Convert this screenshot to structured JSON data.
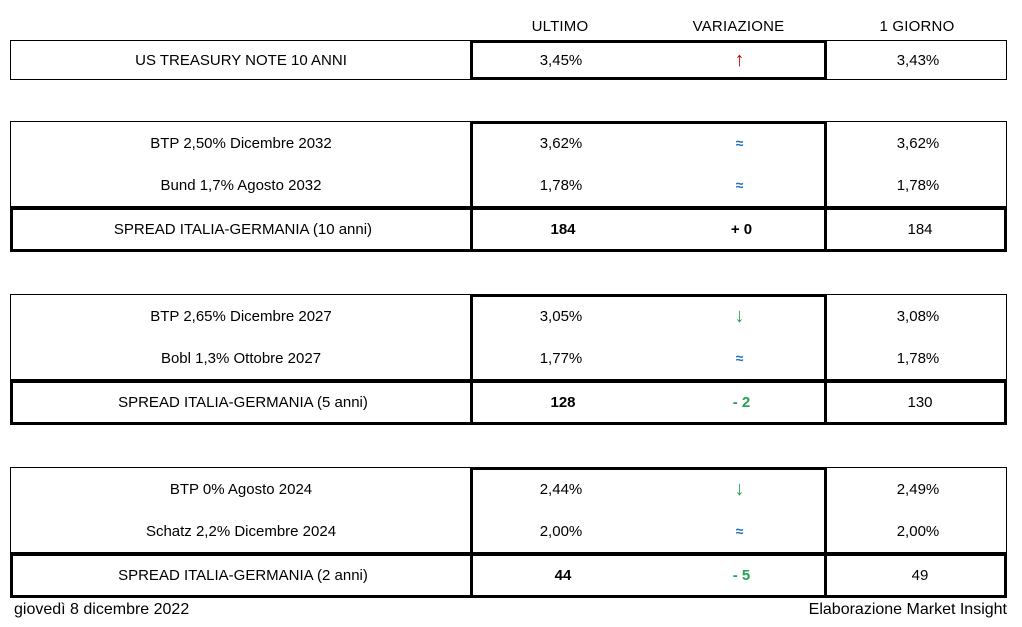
{
  "colors": {
    "up": "#c00000",
    "down": "#22a453",
    "flat": "#2471b5",
    "zero": "#000000",
    "neg": "#22a453"
  },
  "chart_data": {
    "type": "table",
    "columns": [
      "ULTIMO",
      "VARIAZIONE",
      "1 GIORNO"
    ],
    "sections": [
      {
        "rows": [
          {
            "label": "US TREASURY NOTE 10 ANNI",
            "ultimo": "3,45%",
            "var_symbol": "↑",
            "var_type": "up",
            "giorno": "3,43%"
          }
        ],
        "spread": null
      },
      {
        "rows": [
          {
            "label": "BTP 2,50% Dicembre 2032",
            "ultimo": "3,62%",
            "var_symbol": "≈",
            "var_type": "flat",
            "giorno": "3,62%"
          },
          {
            "label": "Bund 1,7% Agosto 2032",
            "ultimo": "1,78%",
            "var_symbol": "≈",
            "var_type": "flat",
            "giorno": "1,78%"
          }
        ],
        "spread": {
          "label": "SPREAD ITALIA-GERMANIA (10 anni)",
          "ultimo": "184",
          "variazione": "+ 0",
          "var_type": "zero",
          "giorno": "184"
        }
      },
      {
        "rows": [
          {
            "label": "BTP 2,65% Dicembre 2027",
            "ultimo": "3,05%",
            "var_symbol": "↓",
            "var_type": "down",
            "giorno": "3,08%"
          },
          {
            "label": "Bobl 1,3% Ottobre 2027",
            "ultimo": "1,77%",
            "var_symbol": "≈",
            "var_type": "flat",
            "giorno": "1,78%"
          }
        ],
        "spread": {
          "label": "SPREAD ITALIA-GERMANIA (5 anni)",
          "ultimo": "128",
          "variazione": "- 2",
          "var_type": "neg",
          "giorno": "130"
        }
      },
      {
        "rows": [
          {
            "label": "BTP 0% Agosto 2024",
            "ultimo": "2,44%",
            "var_symbol": "↓",
            "var_type": "down",
            "giorno": "2,49%"
          },
          {
            "label": "Schatz 2,2% Dicembre 2024",
            "ultimo": "2,00%",
            "var_symbol": "≈",
            "var_type": "flat",
            "giorno": "2,00%"
          }
        ],
        "spread": {
          "label": "SPREAD ITALIA-GERMANIA (2 anni)",
          "ultimo": "44",
          "variazione": "- 5",
          "var_type": "neg",
          "giorno": "49"
        }
      }
    ],
    "date_label": "giovedì 8 dicembre 2022",
    "credit_label": "Elaborazione Market Insight"
  }
}
